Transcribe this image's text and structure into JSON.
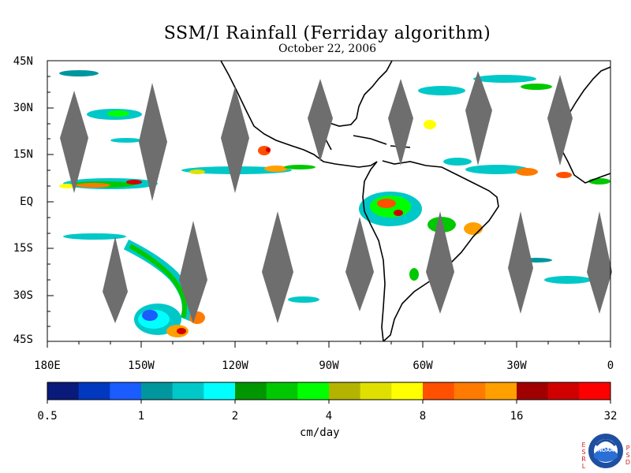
{
  "title": "SSM/I Rainfall (Ferriday algorithm)",
  "date": "October 22, 2006",
  "lat_labels": [
    "45N",
    "30N",
    "15N",
    "EQ",
    "15S",
    "30S",
    "45S"
  ],
  "lon_labels": [
    "180E",
    "150W",
    "120W",
    "90W",
    "60W",
    "30W",
    "0"
  ],
  "colorbar": {
    "tick_labels": [
      "0.5",
      "1",
      "2",
      "4",
      "8",
      "16",
      "32"
    ],
    "units": "cm/day",
    "colors": [
      "#0a1a7a",
      "#0038c0",
      "#1a5cff",
      "#00969e",
      "#00c8c8",
      "#00ffff",
      "#009600",
      "#00c800",
      "#00ff00",
      "#b4b400",
      "#e0e000",
      "#ffff00",
      "#ff5000",
      "#ff7a00",
      "#ffa000",
      "#a00000",
      "#d00000",
      "#ff0000"
    ]
  },
  "map": {
    "extent": {
      "lon": [
        -180,
        0
      ],
      "lat": [
        -45,
        45
      ]
    },
    "no_data_color": "#6e6e6e",
    "coast_color": "#000000"
  },
  "logo": {
    "text": "NOAA",
    "left_letters": "ESRL",
    "right_letters": "PSD",
    "icon": "noaa-logo-icon"
  }
}
